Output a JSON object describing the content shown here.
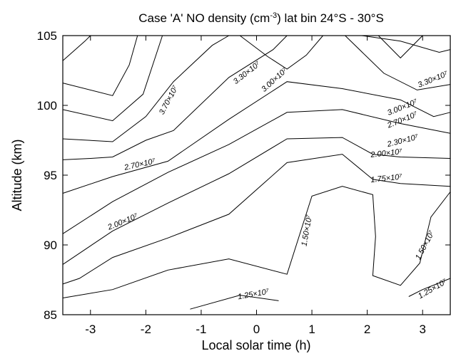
{
  "chart_data": {
    "type": "contour",
    "title": "Case 'A' NO density (cm^-3) lat bin 24°S - 30°S",
    "title_parts": {
      "pre": "Case 'A' NO density (cm",
      "sup": "-3",
      "post": ") lat bin 24°S - 30°S"
    },
    "xlabel": "Local solar time (h)",
    "ylabel": "Altitude (km)",
    "xlim": [
      -3.5,
      3.5
    ],
    "ylim": [
      85,
      105
    ],
    "xticks": [
      -3,
      -2,
      -1,
      0,
      1,
      2,
      3
    ],
    "yticks": [
      85,
      90,
      95,
      100,
      105
    ],
    "grid": false,
    "contours": [
      {
        "points": [
          [
            -3.5,
            86.2
          ],
          [
            -2.6,
            86.8
          ],
          [
            -1.6,
            88.2
          ],
          [
            -0.5,
            89.0
          ],
          [
            0.55,
            87.9
          ],
          [
            1.0,
            93.5
          ],
          [
            1.55,
            94.2
          ],
          [
            2.1,
            93.6
          ],
          [
            2.15,
            90.6
          ],
          [
            2.1,
            87.8
          ],
          [
            2.6,
            87.1
          ],
          [
            2.95,
            88.7
          ],
          [
            3.15,
            92.0
          ],
          [
            3.5,
            93.8
          ]
        ]
      },
      {
        "points": [
          [
            -3.5,
            87.2
          ],
          [
            -3.2,
            87.6
          ],
          [
            -2.6,
            89.1
          ],
          [
            -1.6,
            90.5
          ],
          [
            -0.5,
            92.2
          ],
          [
            0.55,
            95.9
          ],
          [
            1.55,
            96.5
          ],
          [
            2.1,
            94.7
          ],
          [
            2.6,
            94.4
          ],
          [
            3.5,
            94.2
          ]
        ]
      },
      {
        "points": [
          [
            -3.5,
            88.6
          ],
          [
            -2.6,
            91.0
          ],
          [
            -1.6,
            93.0
          ],
          [
            -0.5,
            95.1
          ],
          [
            0.55,
            97.6
          ],
          [
            1.55,
            97.7
          ],
          [
            2.1,
            96.5
          ],
          [
            2.6,
            96.3
          ],
          [
            3.5,
            96.2
          ]
        ]
      },
      {
        "points": [
          [
            -3.5,
            90.8
          ],
          [
            -2.6,
            93.1
          ],
          [
            -1.6,
            95.2
          ],
          [
            -0.5,
            97.2
          ],
          [
            0.55,
            99.5
          ],
          [
            1.55,
            99.7
          ],
          [
            2.6,
            98.7
          ],
          [
            3.5,
            98.0
          ]
        ]
      },
      {
        "points": [
          [
            -3.5,
            93.7
          ],
          [
            -2.6,
            94.9
          ],
          [
            -1.6,
            96.0
          ],
          [
            -0.5,
            99.0
          ],
          [
            0.55,
            101.7
          ],
          [
            1.55,
            101.2
          ],
          [
            2.6,
            100.4
          ],
          [
            3.2,
            99.2
          ],
          [
            3.5,
            99.5
          ]
        ]
      },
      {
        "points": [
          [
            -3.5,
            96.1
          ],
          [
            -3.0,
            96.2
          ],
          [
            -2.6,
            96.3
          ],
          [
            -2.0,
            97.5
          ],
          [
            -1.5,
            98.2
          ],
          [
            -0.5,
            102.0
          ],
          [
            0.3,
            104.0
          ],
          [
            0.55,
            105.0
          ]
        ]
      },
      {
        "points": [
          [
            -3.5,
            97.6
          ],
          [
            -2.6,
            97.4
          ],
          [
            -2.0,
            99.2
          ],
          [
            -1.5,
            101.7
          ],
          [
            -0.8,
            104.3
          ],
          [
            -0.5,
            105.0
          ]
        ]
      },
      {
        "points": [
          [
            -3.5,
            99.7
          ],
          [
            -2.6,
            98.9
          ],
          [
            -2.05,
            100.8
          ],
          [
            -1.7,
            105.0
          ]
        ]
      },
      {
        "points": [
          [
            -3.5,
            101.6
          ],
          [
            -2.6,
            100.7
          ],
          [
            -2.3,
            102.9
          ],
          [
            -2.15,
            105.0
          ]
        ]
      },
      {
        "points": [
          [
            -3.5,
            103.2
          ],
          [
            -3.1,
            104.6
          ],
          [
            -3.0,
            105.0
          ]
        ]
      },
      {
        "points": [
          [
            -0.3,
            105.0
          ],
          [
            0.2,
            103.5
          ],
          [
            0.55,
            102.6
          ],
          [
            0.9,
            103.6
          ],
          [
            1.2,
            105.0
          ]
        ]
      },
      {
        "points": [
          [
            1.6,
            105.0
          ],
          [
            2.3,
            102.3
          ],
          [
            2.9,
            101.1
          ],
          [
            3.5,
            101.5
          ]
        ]
      },
      {
        "points": [
          [
            1.9,
            105.0
          ],
          [
            2.6,
            104.6
          ],
          [
            3.3,
            103.8
          ],
          [
            3.5,
            104.0
          ]
        ]
      },
      {
        "points": [
          [
            2.2,
            105.0
          ],
          [
            2.6,
            103.4
          ],
          [
            3.0,
            105.0
          ]
        ]
      },
      {
        "points": [
          [
            -1.2,
            85.4
          ],
          [
            -0.3,
            86.4
          ],
          [
            0.4,
            86.0
          ]
        ]
      },
      {
        "points": [
          [
            2.75,
            86.3
          ],
          [
            3.0,
            86.8
          ],
          [
            3.5,
            87.6
          ]
        ]
      }
    ],
    "annotations": [
      {
        "text": "3.70×10⁷",
        "x": -1.55,
        "y": 100.3,
        "angle": -62
      },
      {
        "text": "3.30×10⁷",
        "x": -0.15,
        "y": 102.2,
        "angle": -38
      },
      {
        "text": "3.00×10⁷",
        "x": 0.35,
        "y": 101.7,
        "angle": -42
      },
      {
        "text": "3.30×10⁷",
        "x": 3.2,
        "y": 101.7,
        "angle": -22
      },
      {
        "text": "3.00×10⁷",
        "x": 2.65,
        "y": 99.7,
        "angle": -22
      },
      {
        "text": "2.70×10⁷",
        "x": 2.65,
        "y": 98.8,
        "angle": -22
      },
      {
        "text": "2.30×10⁷",
        "x": 2.65,
        "y": 97.3,
        "angle": -14
      },
      {
        "text": "2.00×10⁷",
        "x": 2.35,
        "y": 96.4,
        "angle": -6
      },
      {
        "text": "2.70×10⁷",
        "x": -2.1,
        "y": 95.6,
        "angle": -12
      },
      {
        "text": "1.75×10⁷",
        "x": 2.35,
        "y": 94.6,
        "angle": -6
      },
      {
        "text": "2.00×10⁷",
        "x": -2.4,
        "y": 91.5,
        "angle": -22
      },
      {
        "text": "1.50×10⁷",
        "x": 0.95,
        "y": 91.0,
        "angle": -80
      },
      {
        "text": "1.50×10⁷",
        "x": 3.08,
        "y": 89.9,
        "angle": -62
      },
      {
        "text": "1.25×10⁷",
        "x": -0.05,
        "y": 86.3,
        "angle": -10
      },
      {
        "text": "1.25×10⁷",
        "x": 3.2,
        "y": 86.7,
        "angle": -30
      }
    ]
  }
}
